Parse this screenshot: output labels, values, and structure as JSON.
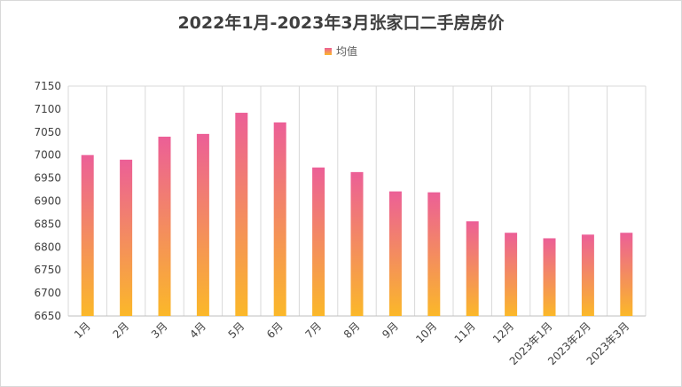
{
  "chart_data": {
    "type": "bar",
    "title": "2022年1月-2023年3月张家口二手房房价",
    "legend": {
      "position": "top",
      "entries": [
        "均值"
      ]
    },
    "series": [
      {
        "name": "均值",
        "values": [
          7000,
          6990,
          7040,
          7046,
          7092,
          7071,
          6973,
          6963,
          6921,
          6919,
          6856,
          6831,
          6819,
          6827,
          6831
        ]
      }
    ],
    "categories": [
      "1月",
      "2月",
      "3月",
      "4月",
      "5月",
      "6月",
      "7月",
      "8月",
      "9月",
      "10月",
      "11月",
      "12月",
      "2023年1月",
      "2023年2月",
      "2023年3月"
    ],
    "y_ticks": [
      "6650",
      "6700",
      "6750",
      "6800",
      "6850",
      "6900",
      "6950",
      "7000",
      "7050",
      "7100",
      "7150"
    ],
    "ylim": [
      6650,
      7150
    ],
    "grid": "vertical",
    "colors": {
      "bar_top": "#ec5f97",
      "bar_bottom": "#fbb829",
      "grid": "#d9d9d9",
      "axis": "#bfbfbf"
    }
  }
}
